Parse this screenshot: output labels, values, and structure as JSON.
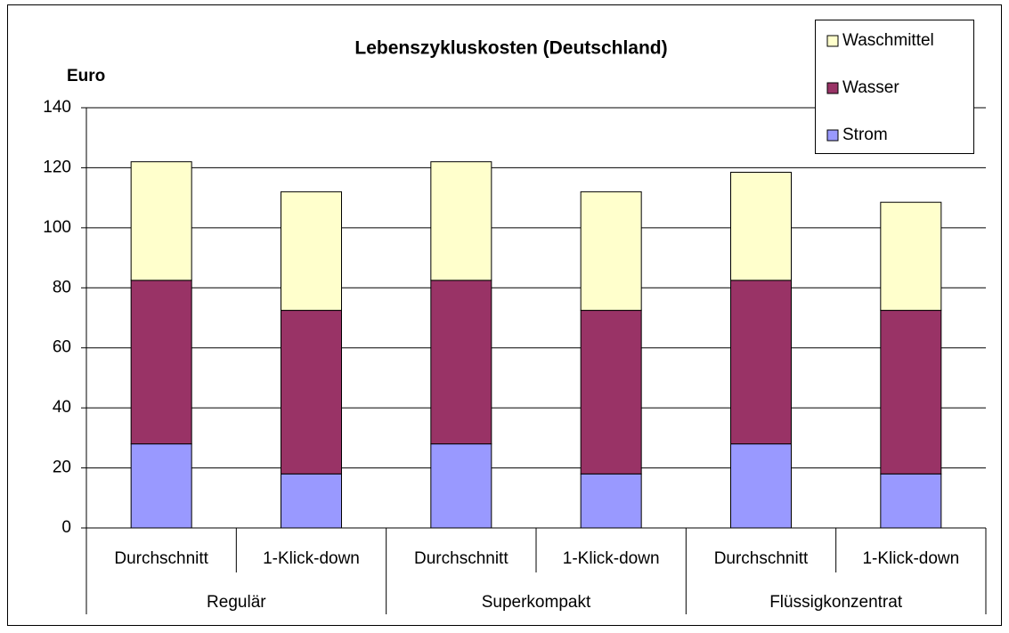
{
  "chart_data": {
    "type": "stacked_bar",
    "title": "Lebenszykluskosten (Deutschland)",
    "y_label": "Euro",
    "groups": [
      {
        "label": "Regulär",
        "categories": [
          "Durchschnitt",
          "1-Klick-down"
        ]
      },
      {
        "label": "Superkompakt",
        "categories": [
          "Durchschnitt",
          "1-Klick-down"
        ]
      },
      {
        "label": "Flüssigkonzentrat",
        "categories": [
          "Durchschnitt",
          "1-Klick-down"
        ]
      }
    ],
    "series": [
      {
        "name": "Strom",
        "color": "#9999ff",
        "values": [
          28,
          18,
          28,
          18,
          28,
          18
        ]
      },
      {
        "name": "Wasser",
        "color": "#993366",
        "values": [
          54.5,
          54.5,
          54.5,
          54.5,
          54.5,
          54.5
        ]
      },
      {
        "name": "Waschmittel",
        "color": "#ffffcc",
        "values": [
          39.5,
          39.5,
          39.5,
          39.5,
          36,
          36
        ]
      }
    ],
    "ylim": [
      0,
      140
    ],
    "yticks": [
      0,
      20,
      40,
      60,
      80,
      100,
      120,
      140
    ],
    "grid": true,
    "legend": "top-right"
  }
}
